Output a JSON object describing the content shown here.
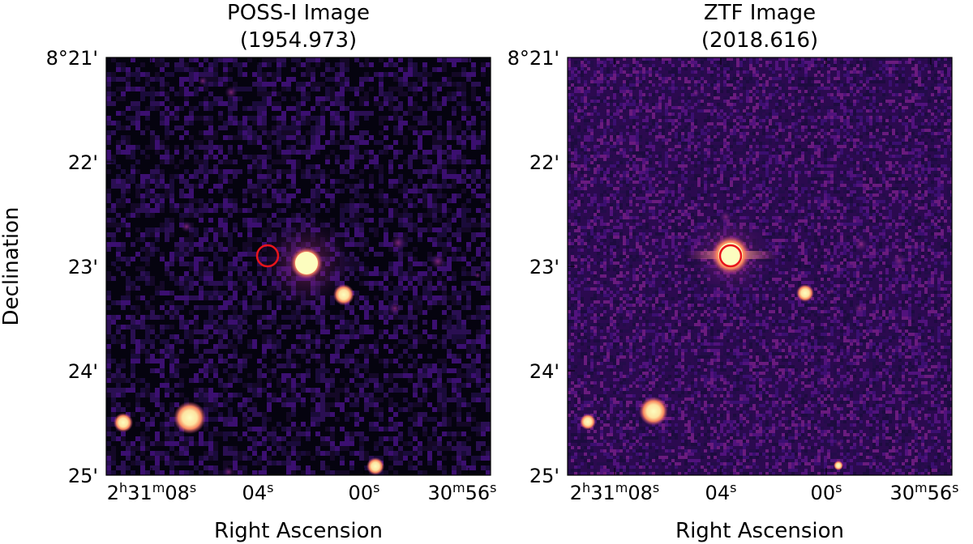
{
  "figure": {
    "panels": [
      {
        "id": "poss",
        "title_line1": "POSS-I Image",
        "title_line2": "(1954.973)",
        "dec_ticks": [
          "8°21'",
          "22'",
          "23'",
          "24'",
          "25'"
        ],
        "ra_ticks": [
          {
            "h": "2",
            "m": "31",
            "s": "08"
          },
          {
            "h": "",
            "m": "",
            "s": "04"
          },
          {
            "h": "",
            "m": "",
            "s": "00"
          },
          {
            "h": "",
            "m": "30",
            "s": "56"
          }
        ],
        "xlabel": "Right Ascension",
        "ylabel": "Declination"
      },
      {
        "id": "ztf",
        "title_line1": "ZTF Image",
        "title_line2": "(2018.616)",
        "dec_ticks": [
          "8°21'",
          "22'",
          "23'",
          "24'",
          "25'"
        ],
        "ra_ticks": [
          {
            "h": "2",
            "m": "31",
            "s": "08"
          },
          {
            "h": "",
            "m": "",
            "s": "04"
          },
          {
            "h": "",
            "m": "",
            "s": "00"
          },
          {
            "h": "",
            "m": "30",
            "s": "56"
          }
        ],
        "xlabel": "Right Ascension",
        "ylabel": ""
      }
    ],
    "units": {
      "h": "h",
      "m": "m",
      "s": "s"
    },
    "colors": {
      "background": "#000004",
      "noise": "#2a0c55",
      "star_core": "#fcfdbf",
      "star_mid": "#fec287",
      "star_outer": "#b63679",
      "marker": "#e8141c"
    },
    "colormap": "magma",
    "marker": "red-circle"
  }
}
